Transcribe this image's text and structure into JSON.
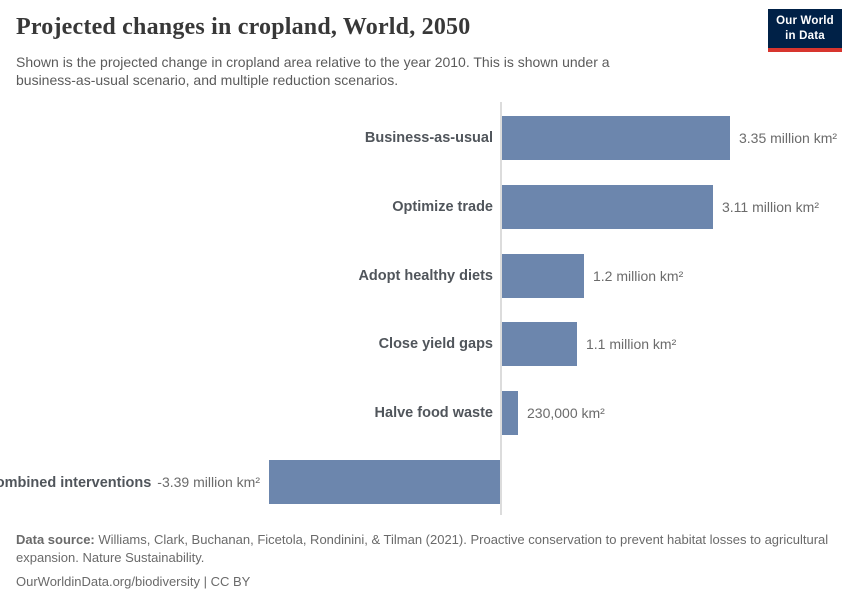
{
  "header": {
    "title": "Projected changes in cropland, World, 2050",
    "subtitle": "Shown is the projected change in cropland area relative to the year 2010. This is shown under a business-as-usual scenario, and multiple reduction scenarios.",
    "logo": {
      "line1": "Our World",
      "line2": "in Data",
      "bg_color": "#002147",
      "accent_color": "#d7352e",
      "text_color": "#ffffff"
    }
  },
  "chart_data": {
    "type": "bar",
    "orientation": "horizontal",
    "title": "Projected changes in cropland, World, 2050",
    "unit": "km²",
    "baseline": 0,
    "grid": false,
    "legend": false,
    "xlim_million_km2": [
      -3.39,
      3.35
    ],
    "categories": [
      "Business-as-usual",
      "Optimize trade",
      "Adopt healthy diets",
      "Close yield gaps",
      "Halve food waste",
      "Combined interventions"
    ],
    "values_million_km2": [
      3.35,
      3.11,
      1.2,
      1.1,
      0.23,
      -3.39
    ],
    "value_labels": [
      "3.35 million km²",
      "3.11 million km²",
      "1.2 million km²",
      "1.1 million km²",
      "230,000 km²",
      "-3.39 million km²"
    ],
    "bar_color": "#6c86ad",
    "axis_color": "#dcdcdc"
  },
  "footer": {
    "source_label": "Data source:",
    "source_text": "Williams, Clark, Buchanan, Ficetola, Rondinini, & Tilman (2021). Proactive conservation to prevent habitat losses to agricultural expansion. Nature Sustainability.",
    "link_line": "OurWorldinData.org/biodiversity | CC BY"
  }
}
